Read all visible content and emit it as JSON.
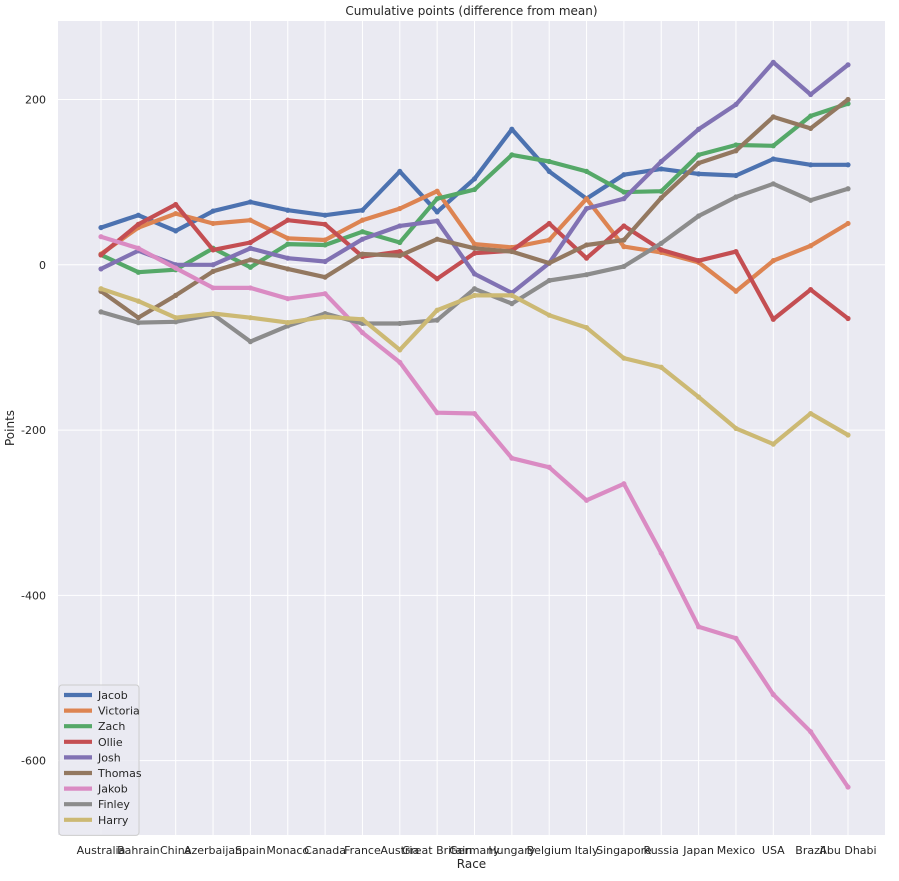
{
  "chart_data": {
    "type": "line",
    "title": "Cumulative points (difference from mean)",
    "xlabel": "Race",
    "ylabel": "Points",
    "ylim": [
      -690,
      295
    ],
    "yticks": [
      -600,
      -400,
      -200,
      0,
      200
    ],
    "ytick_labels": [
      "-600",
      "-400",
      "-200",
      "0",
      "200"
    ],
    "grid": true,
    "legend_position": "lower-left",
    "categories": [
      "Australia",
      "Bahrain",
      "China",
      "Azerbaijan",
      "Spain",
      "Monaco",
      "Canada",
      "France",
      "Austria",
      "Great Britain",
      "Germany",
      "Hungary",
      "Belgium",
      "Italy",
      "Singapore",
      "Russia",
      "Japan",
      "Mexico",
      "USA",
      "Brazil",
      "Abu Dhabi"
    ],
    "series": [
      {
        "name": "Jacob",
        "color": "#4c72b0",
        "values": [
          45,
          60,
          41,
          65,
          76,
          66,
          60,
          66,
          113,
          64,
          104,
          164,
          113,
          80,
          109,
          116,
          110,
          108,
          128,
          121,
          121
        ]
      },
      {
        "name": "Victoria",
        "color": "#dd8452",
        "values": [
          13,
          45,
          62,
          50,
          54,
          32,
          30,
          54,
          68,
          89,
          25,
          21,
          30,
          80,
          22,
          15,
          3,
          -32,
          5,
          23,
          50
        ]
      },
      {
        "name": "Zach",
        "color": "#55a868",
        "values": [
          12,
          -9,
          -6,
          20,
          -3,
          25,
          24,
          40,
          27,
          80,
          91,
          133,
          125,
          113,
          88,
          89,
          133,
          145,
          144,
          180,
          195
        ]
      },
      {
        "name": "Ollie",
        "color": "#c44e52",
        "values": [
          12,
          49,
          73,
          18,
          27,
          54,
          49,
          10,
          16,
          -17,
          14,
          17,
          50,
          8,
          47,
          18,
          5,
          16,
          -66,
          -30,
          -65
        ]
      },
      {
        "name": "Josh",
        "color": "#8172b3",
        "values": [
          -5,
          17,
          0,
          0,
          20,
          8,
          4,
          31,
          47,
          53,
          -11,
          -34,
          2,
          68,
          80,
          125,
          164,
          194,
          245,
          206,
          242
        ]
      },
      {
        "name": "Thomas",
        "color": "#937860",
        "values": [
          -32,
          -64,
          -37,
          -8,
          6,
          -5,
          -15,
          13,
          11,
          31,
          20,
          16,
          2,
          24,
          30,
          81,
          123,
          138,
          179,
          165,
          200
        ]
      },
      {
        "name": "Jakob",
        "color": "#da8bc3",
        "values": [
          34,
          20,
          -4,
          -28,
          -28,
          -41,
          -35,
          -82,
          -118,
          -179,
          -180,
          -234,
          -245,
          -285,
          -265,
          -349,
          -438,
          -452,
          -520,
          -565,
          -632
        ]
      },
      {
        "name": "Finley",
        "color": "#8c8c8c",
        "values": [
          -57,
          -70,
          -69,
          -60,
          -93,
          -74,
          -59,
          -71,
          -71,
          -67,
          -29,
          -47,
          -19,
          -12,
          -2,
          26,
          59,
          82,
          98,
          78,
          92
        ]
      },
      {
        "name": "Harry",
        "color": "#ccb974",
        "values": [
          -29,
          -44,
          -64,
          -59,
          -64,
          -70,
          -63,
          -66,
          -103,
          -55,
          -37,
          -37,
          -61,
          -76,
          -113,
          -124,
          -160,
          -198,
          -217,
          -180,
          -206
        ]
      }
    ]
  }
}
